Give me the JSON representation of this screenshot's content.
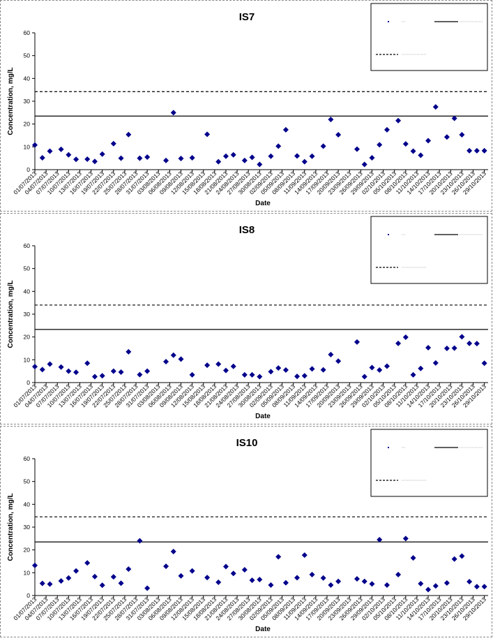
{
  "x_axis_ticks": [
    "01/07/2013",
    "04/07/2013",
    "07/07/2013",
    "10/07/2013",
    "13/07/2013",
    "16/07/2013",
    "19/07/2013",
    "22/07/2013",
    "25/07/2013",
    "28/07/2013",
    "31/07/2013",
    "03/08/2013",
    "06/08/2013",
    "09/08/2013",
    "12/08/2013",
    "15/08/2013",
    "18/08/2013",
    "21/08/2013",
    "24/08/2013",
    "27/08/2013",
    "30/08/2013",
    "02/09/2013",
    "05/09/2013",
    "08/09/2013",
    "11/09/2013",
    "14/09/2013",
    "17/09/2013",
    "20/09/2013",
    "23/09/2013",
    "26/09/2013",
    "29/09/2013",
    "02/10/2013",
    "05/10/2013",
    "08/10/2013",
    "11/10/2013",
    "14/10/2013",
    "17/10/2013",
    "20/10/2013",
    "23/10/2013",
    "26/10/2013",
    "29/10/2013"
  ],
  "colors": {
    "marker": "#00008B",
    "line": "#000000"
  },
  "chart_data": [
    {
      "type": "scatter",
      "title": "IS7",
      "xlabel": "Date",
      "ylabel": "Concentration, mg/L",
      "ylim": [
        0,
        60
      ],
      "yticks": [
        0,
        10,
        20,
        30,
        40,
        50,
        60
      ],
      "xrange": [
        "2013-07-01",
        "2013-10-30"
      ],
      "legend": "top-right",
      "reference_lines": [
        {
          "style": "solid",
          "value": 23.5
        },
        {
          "style": "dashed",
          "value": 34.2
        }
      ],
      "series": [
        {
          "marker": "diamond",
          "x": [
            "2013-07-01",
            "2013-07-03",
            "2013-07-05",
            "2013-07-08",
            "2013-07-10",
            "2013-07-12",
            "2013-07-15",
            "2013-07-17",
            "2013-07-19",
            "2013-07-22",
            "2013-07-24",
            "2013-07-26",
            "2013-07-29",
            "2013-07-31",
            "2013-08-05",
            "2013-08-07",
            "2013-08-09",
            "2013-08-12",
            "2013-08-16",
            "2013-08-19",
            "2013-08-21",
            "2013-08-23",
            "2013-08-26",
            "2013-08-28",
            "2013-08-30",
            "2013-09-02",
            "2013-09-04",
            "2013-09-06",
            "2013-09-09",
            "2013-09-11",
            "2013-09-13",
            "2013-09-16",
            "2013-09-18",
            "2013-09-20",
            "2013-09-25",
            "2013-09-27",
            "2013-09-29",
            "2013-10-01",
            "2013-10-03",
            "2013-10-06",
            "2013-10-08",
            "2013-10-10",
            "2013-10-12",
            "2013-10-14",
            "2013-10-16",
            "2013-10-19",
            "2013-10-21",
            "2013-10-23",
            "2013-10-25",
            "2013-10-27",
            "2013-10-29"
          ],
          "y": [
            10.8,
            5.2,
            8.1,
            8.9,
            6.5,
            4.5,
            4.6,
            3.6,
            6.8,
            11.4,
            5.0,
            15.4,
            5.0,
            5.5,
            4.0,
            25.0,
            4.9,
            5.2,
            15.5,
            3.5,
            5.9,
            6.5,
            4.0,
            5.4,
            2.3,
            5.9,
            10.3,
            17.5,
            6.0,
            3.5,
            5.9,
            10.3,
            22.0,
            15.3,
            9.0,
            2.3,
            5.2,
            10.9,
            17.5,
            21.5,
            11.3,
            8.1,
            6.3,
            12.7,
            27.5,
            14.3,
            22.5,
            15.3,
            8.3,
            8.3,
            8.3
          ]
        }
      ]
    },
    {
      "type": "scatter",
      "title": "IS8",
      "xlabel": "Date",
      "ylabel": "Concentration, mg/L",
      "ylim": [
        0,
        60
      ],
      "yticks": [
        0,
        10,
        20,
        30,
        40,
        50,
        60
      ],
      "xrange": [
        "2013-07-01",
        "2013-10-30"
      ],
      "legend": "top-right",
      "reference_lines": [
        {
          "style": "solid",
          "value": 23.3
        },
        {
          "style": "dashed",
          "value": 34.0
        }
      ],
      "series": [
        {
          "marker": "diamond",
          "x": [
            "2013-07-01",
            "2013-07-03",
            "2013-07-05",
            "2013-07-08",
            "2013-07-10",
            "2013-07-12",
            "2013-07-15",
            "2013-07-17",
            "2013-07-19",
            "2013-07-22",
            "2013-07-24",
            "2013-07-26",
            "2013-07-29",
            "2013-07-31",
            "2013-08-05",
            "2013-08-07",
            "2013-08-09",
            "2013-08-12",
            "2013-08-16",
            "2013-08-19",
            "2013-08-21",
            "2013-08-23",
            "2013-08-26",
            "2013-08-28",
            "2013-08-30",
            "2013-09-02",
            "2013-09-04",
            "2013-09-06",
            "2013-09-09",
            "2013-09-11",
            "2013-09-13",
            "2013-09-16",
            "2013-09-18",
            "2013-09-20",
            "2013-09-25",
            "2013-09-27",
            "2013-09-29",
            "2013-10-01",
            "2013-10-03",
            "2013-10-06",
            "2013-10-08",
            "2013-10-10",
            "2013-10-12",
            "2013-10-14",
            "2013-10-16",
            "2013-10-19",
            "2013-10-21",
            "2013-10-23",
            "2013-10-25",
            "2013-10-27",
            "2013-10-29"
          ],
          "y": [
            7.0,
            5.7,
            8.1,
            6.8,
            5.0,
            4.5,
            8.5,
            2.6,
            3.0,
            5.0,
            4.6,
            13.5,
            3.5,
            5.0,
            9.2,
            12.0,
            10.3,
            3.4,
            7.6,
            8.1,
            5.3,
            7.1,
            3.4,
            3.4,
            2.6,
            4.8,
            6.4,
            5.5,
            2.7,
            3.0,
            6.0,
            5.6,
            12.3,
            9.4,
            17.8,
            2.6,
            6.6,
            5.5,
            7.2,
            17.2,
            19.9,
            3.4,
            6.2,
            15.3,
            8.6,
            15.0,
            15.1,
            20.1,
            17.2,
            17.1,
            8.5
          ]
        }
      ]
    },
    {
      "type": "scatter",
      "title": "IS10",
      "xlabel": "Date",
      "ylabel": "Concentration, mg/L",
      "ylim": [
        0,
        60
      ],
      "yticks": [
        0,
        10,
        20,
        30,
        40,
        50,
        60
      ],
      "xrange": [
        "2013-07-01",
        "2013-10-30"
      ],
      "legend": "top-right",
      "reference_lines": [
        {
          "style": "solid",
          "value": 23.5
        },
        {
          "style": "dashed",
          "value": 34.5
        }
      ],
      "series": [
        {
          "marker": "diamond",
          "x": [
            "2013-07-01",
            "2013-07-03",
            "2013-07-05",
            "2013-07-08",
            "2013-07-10",
            "2013-07-12",
            "2013-07-15",
            "2013-07-17",
            "2013-07-19",
            "2013-07-22",
            "2013-07-24",
            "2013-07-26",
            "2013-07-29",
            "2013-07-31",
            "2013-08-05",
            "2013-08-07",
            "2013-08-09",
            "2013-08-12",
            "2013-08-16",
            "2013-08-19",
            "2013-08-21",
            "2013-08-23",
            "2013-08-26",
            "2013-08-28",
            "2013-08-30",
            "2013-09-02",
            "2013-09-04",
            "2013-09-06",
            "2013-09-09",
            "2013-09-11",
            "2013-09-13",
            "2013-09-16",
            "2013-09-18",
            "2013-09-20",
            "2013-09-25",
            "2013-09-27",
            "2013-09-29",
            "2013-10-01",
            "2013-10-03",
            "2013-10-06",
            "2013-10-08",
            "2013-10-10",
            "2013-10-12",
            "2013-10-14",
            "2013-10-16",
            "2013-10-19",
            "2013-10-21",
            "2013-10-23",
            "2013-10-25",
            "2013-10-27",
            "2013-10-29"
          ],
          "y": [
            13.2,
            5.3,
            5.0,
            6.4,
            7.7,
            10.8,
            14.3,
            8.3,
            4.5,
            8.2,
            5.4,
            11.6,
            24.0,
            3.2,
            12.8,
            19.3,
            8.6,
            10.8,
            7.9,
            5.8,
            12.7,
            9.7,
            11.3,
            6.7,
            7.0,
            4.6,
            17.0,
            5.6,
            7.8,
            17.7,
            9.2,
            7.7,
            4.6,
            6.2,
            7.3,
            6.2,
            5.1,
            24.5,
            4.6,
            9.2,
            25.0,
            16.5,
            5.2,
            2.6,
            4.2,
            5.5,
            16.0,
            17.3,
            6.1,
            3.9,
            3.9
          ]
        }
      ]
    }
  ]
}
